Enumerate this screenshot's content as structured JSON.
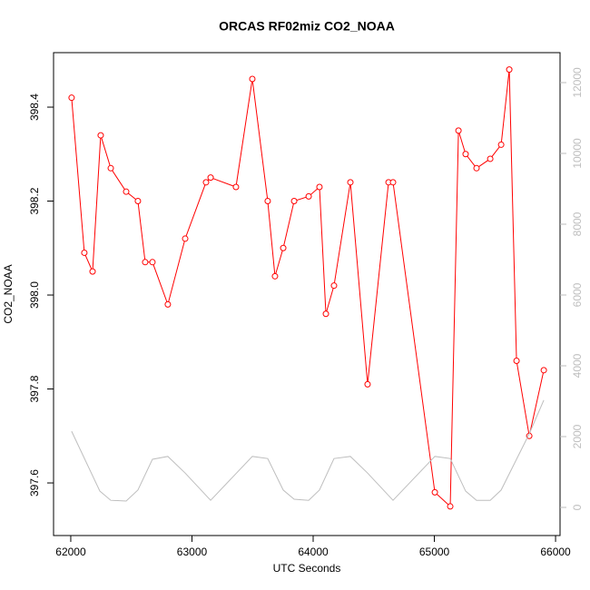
{
  "chart_data": {
    "type": "line",
    "title": "ORCAS RF02miz CO2_NOAA",
    "x_label": "UTC Seconds",
    "y_label": "CO2_NOAA",
    "xlim": [
      61858,
      66037
    ],
    "xticks": [
      62000,
      63000,
      64000,
      65000,
      66000
    ],
    "ylim": [
      397.488,
      398.516
    ],
    "yticks": [
      397.6,
      397.8,
      {
        "value": 398.0,
        "label": "398.0"
      },
      398.2,
      398.4
    ],
    "y2lim": [
      -795,
      12846
    ],
    "y2ticks": [
      0,
      2000,
      4000,
      6000,
      8000,
      10000,
      12000
    ],
    "y2_color": "#bebebe",
    "series": [
      {
        "color": "#ff0000",
        "markers": true,
        "x": [
          62007,
          62112,
          62180,
          62247,
          62330,
          62457,
          62554,
          62614,
          62674,
          62801,
          62944,
          63116,
          63154,
          63363,
          63498,
          63625,
          63685,
          63753,
          63843,
          63963,
          64052,
          64105,
          64172,
          64307,
          64449,
          64622,
          64659,
          65004,
          65131,
          65199,
          65258,
          65348,
          65461,
          65551,
          65618,
          65678,
          65783,
          65903
        ],
        "values": [
          398.42,
          398.09,
          398.05,
          398.34,
          398.27,
          398.22,
          398.2,
          398.07,
          398.07,
          397.98,
          398.12,
          398.24,
          398.25,
          398.23,
          398.46,
          398.2,
          398.04,
          398.1,
          398.2,
          398.21,
          398.23,
          397.96,
          398.02,
          398.24,
          397.81,
          398.24,
          398.24,
          397.58,
          397.55,
          398.35,
          398.3,
          398.27,
          398.29,
          398.32,
          398.48,
          397.86,
          397.7,
          397.84
        ]
      },
      {
        "color": "#bebebe",
        "axis": "y2",
        "markers": false,
        "x": [
          62007,
          62240,
          62330,
          62457,
          62554,
          62674,
          62801,
          62944,
          63154,
          63498,
          63625,
          63753,
          63843,
          63963,
          64052,
          64172,
          64307,
          64449,
          64659,
          65004,
          65131,
          65258,
          65348,
          65461,
          65551,
          65783,
          65903
        ],
        "values": [
          2150,
          460,
          200,
          180,
          490,
          1360,
          1440,
          970,
          200,
          1440,
          1380,
          490,
          230,
          200,
          490,
          1380,
          1440,
          970,
          200,
          1440,
          1380,
          460,
          200,
          200,
          490,
          2080,
          3030
        ]
      }
    ]
  }
}
